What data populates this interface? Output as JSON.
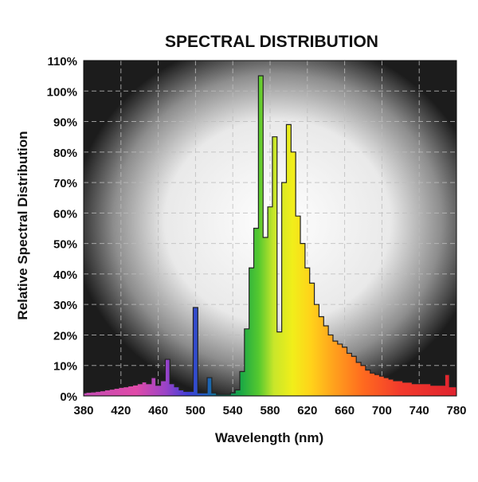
{
  "chart_data": {
    "type": "area",
    "title": "SPECTRAL DISTRIBUTION",
    "xlabel": "Wavelength (nm)",
    "ylabel": "Relative Spectral Distribution",
    "xlim": [
      380,
      780
    ],
    "ylim": [
      0,
      110
    ],
    "xticks": [
      380,
      420,
      460,
      500,
      540,
      580,
      620,
      660,
      700,
      740,
      780
    ],
    "yticks": [
      "0%",
      "10%",
      "20%",
      "30%",
      "40%",
      "50%",
      "60%",
      "70%",
      "80%",
      "90%",
      "100%",
      "110%"
    ],
    "grid": true,
    "series": [
      {
        "x": [
          380,
          385,
          390,
          395,
          400,
          405,
          410,
          415,
          420,
          425,
          430,
          435,
          440,
          445,
          450,
          455,
          460,
          465,
          470,
          475,
          480,
          485,
          490,
          495,
          500,
          505,
          510,
          515,
          520,
          525,
          530,
          535,
          540,
          545,
          550,
          555,
          560,
          565,
          570,
          575,
          580,
          585,
          590,
          595,
          600,
          605,
          610,
          615,
          620,
          625,
          630,
          635,
          640,
          645,
          650,
          655,
          660,
          665,
          670,
          675,
          680,
          685,
          690,
          695,
          700,
          705,
          710,
          715,
          720,
          725,
          730,
          735,
          740,
          745,
          750,
          755,
          760,
          765,
          770,
          775,
          780
        ],
        "y": [
          1.0,
          1.2,
          1.3,
          1.5,
          1.7,
          2.0,
          2.2,
          2.5,
          2.8,
          3.0,
          3.3,
          3.6,
          4.0,
          4.6,
          4.0,
          6.0,
          3.5,
          5.0,
          12.0,
          4.0,
          3.0,
          2.0,
          1.5,
          1.5,
          29.0,
          1.0,
          1.0,
          6.0,
          1.0,
          0.5,
          0.5,
          0.5,
          1.0,
          2.0,
          8.0,
          22.0,
          42.0,
          55.0,
          105.0,
          52.0,
          62.0,
          85.0,
          21.0,
          70.0,
          89.0,
          80.0,
          59.0,
          50.0,
          42.0,
          37.0,
          30.0,
          26.0,
          23.0,
          20.0,
          18.0,
          17.0,
          16.0,
          14.0,
          13.0,
          11.0,
          10.0,
          8.5,
          7.5,
          7.0,
          6.5,
          6.0,
          5.5,
          5.0,
          5.0,
          4.5,
          4.5,
          4.0,
          4.0,
          4.0,
          4.0,
          3.5,
          3.5,
          3.5,
          7.0,
          3.0,
          3.0
        ]
      }
    ]
  }
}
